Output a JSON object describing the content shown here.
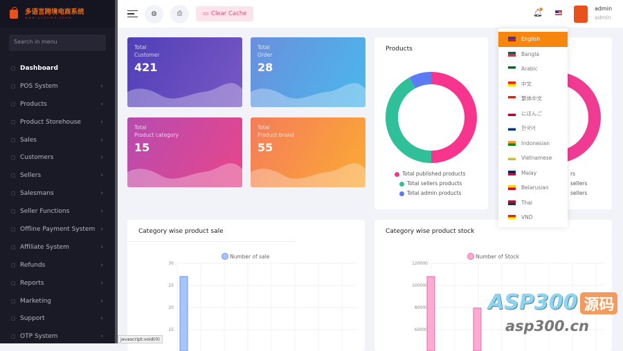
{
  "brand": {
    "name": "多语言跨境电商系统",
    "sub": "www.yuanma.show"
  },
  "sidebar": {
    "search_placeholder": "Search in menu",
    "items": [
      {
        "label": "Dashboard",
        "icon": "home-icon",
        "active": true
      },
      {
        "label": "POS System",
        "icon": "pos-icon"
      },
      {
        "label": "Products",
        "icon": "cart-icon"
      },
      {
        "label": "Product Storehouse",
        "icon": "storehouse-icon"
      },
      {
        "label": "Sales",
        "icon": "sales-icon"
      },
      {
        "label": "Customers",
        "icon": "customers-icon"
      },
      {
        "label": "Sellers",
        "icon": "user-icon"
      },
      {
        "label": "Salesmans",
        "icon": "user-icon"
      },
      {
        "label": "Seller Functions",
        "icon": "user-icon"
      },
      {
        "label": "Offline Payment System",
        "icon": "payment-icon"
      },
      {
        "label": "Affiliate System",
        "icon": "link-icon"
      },
      {
        "label": "Refunds",
        "icon": "refund-icon"
      },
      {
        "label": "Reports",
        "icon": "report-icon"
      },
      {
        "label": "Marketing",
        "icon": "megaphone-icon"
      },
      {
        "label": "Support",
        "icon": "link-icon"
      },
      {
        "label": "OTP System",
        "icon": "phone-icon"
      }
    ]
  },
  "status_bar": "javascript:void(0)",
  "header": {
    "clear_cache": "Clear Cache",
    "user_name": "admin",
    "user_role": "admin"
  },
  "stats": [
    {
      "label1": "Total",
      "label2": "Customer",
      "value": "421",
      "colors": [
        "#4f3fb8",
        "#7a58c4"
      ]
    },
    {
      "label1": "Total",
      "label2": "Order",
      "value": "28",
      "colors": [
        "#6a8fdc",
        "#4ab8ec"
      ]
    },
    {
      "label1": "Total",
      "label2": "Product category",
      "value": "15",
      "colors": [
        "#b74bb0",
        "#e8468a"
      ]
    },
    {
      "label1": "Total",
      "label2": "Product brand",
      "value": "55",
      "colors": [
        "#f47c5a",
        "#fbab34"
      ]
    }
  ],
  "products_card": {
    "title": "Products",
    "legend": [
      "Total published products",
      "Total sellers products",
      "Total admin products"
    ]
  },
  "sellers_card": {
    "legend_fragments": [
      "rs",
      "sellers",
      "sellers"
    ]
  },
  "languages": {
    "selected": "English",
    "items": [
      {
        "label": "English",
        "colors": [
          "#3c3b8e",
          "#b22"
        ]
      },
      {
        "label": "Bangla",
        "colors": [
          "#006a4e",
          "#f42a41"
        ]
      },
      {
        "label": "Arabic",
        "colors": [
          "#165d31",
          "#fff"
        ]
      },
      {
        "label": "中文",
        "colors": [
          "#de2910",
          "#ffde00"
        ]
      },
      {
        "label": "繁体中文",
        "colors": [
          "#de2910",
          "#fff"
        ]
      },
      {
        "label": "にほんご",
        "colors": [
          "#fff",
          "#bc002d"
        ]
      },
      {
        "label": "한국어",
        "colors": [
          "#fff",
          "#003478"
        ]
      },
      {
        "label": "Indonesian",
        "colors": [
          "#f93",
          "#138808"
        ]
      },
      {
        "label": "Vietnamese",
        "colors": [
          "#ffd",
          "#c8b850"
        ]
      },
      {
        "label": "Malay",
        "colors": [
          "#012169",
          "#c8102e"
        ]
      },
      {
        "label": "Belarusian",
        "colors": [
          "#fcd116",
          "#ce1126"
        ]
      },
      {
        "label": "Thai",
        "colors": [
          "#a51931",
          "#2d2a4a"
        ]
      },
      {
        "label": "VND",
        "colors": [
          "#da251d",
          "#ff0"
        ]
      }
    ]
  },
  "chart_data": [
    {
      "type": "pie",
      "title": "Products",
      "categories": [
        "Total published products",
        "Total sellers products",
        "Total admin products"
      ],
      "values": [
        50,
        42,
        8
      ],
      "colors": [
        "#f8358e",
        "#2fc09a",
        "#5b7bf5"
      ]
    },
    {
      "type": "bar",
      "title": "Category wise product sale",
      "legend": "Number of sale",
      "yticks": [
        "30",
        "25",
        "20",
        "15"
      ],
      "ylim": [
        15,
        30
      ],
      "values": [
        27
      ],
      "color": "#a8c4f8"
    },
    {
      "type": "bar",
      "title": "Category wise product stock",
      "legend": "Number of Stock",
      "yticks": [
        "120000",
        "100000",
        "80000",
        "60000"
      ],
      "ylim": [
        60000,
        120000
      ],
      "values": [
        108000,
        79500
      ],
      "color": "#fbabd2"
    }
  ],
  "watermark": {
    "text": "ASP300",
    "badge": "源码",
    "url": "asp300.cn"
  }
}
